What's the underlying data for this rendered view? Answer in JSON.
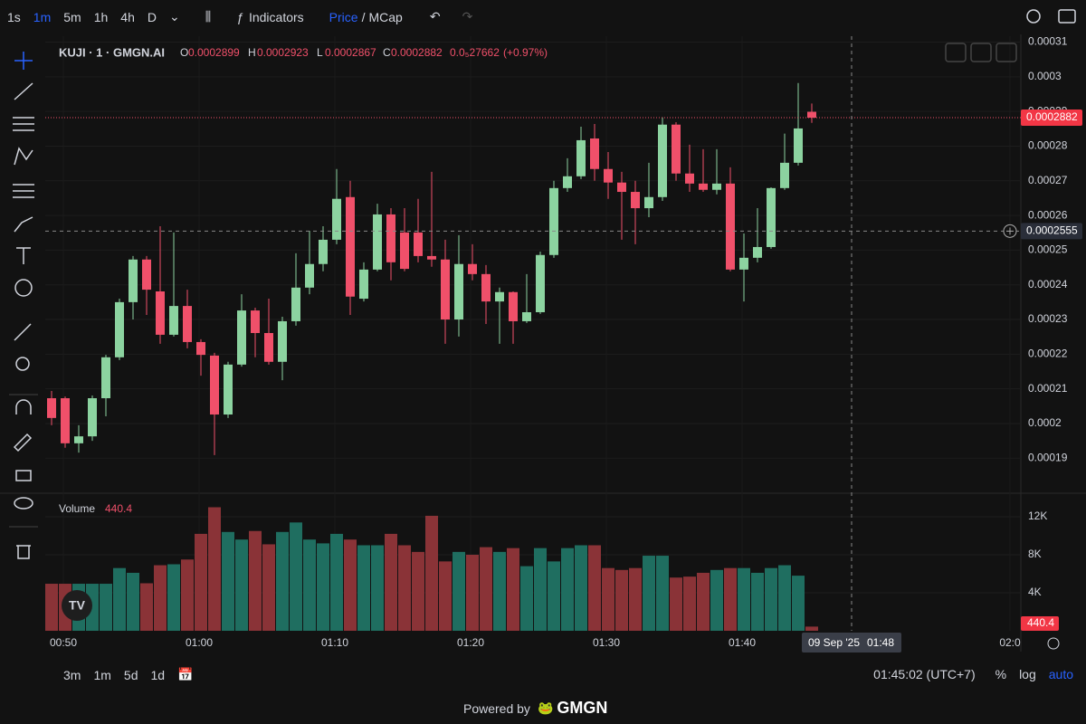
{
  "toolbar": {
    "intervals": [
      "1s",
      "1m",
      "5m",
      "1h",
      "4h",
      "D"
    ],
    "indicators": "Indicators",
    "price": "Price",
    "separator": "/",
    "mcap": "MCap"
  },
  "legend": {
    "symbol": "KUJI · 1 · GMGN.AI",
    "o_label": "O",
    "h_label": "H",
    "l_label": "L",
    "c_label": "C",
    "change": "0.0₅27662",
    "change_pct": "(+0.97%)"
  },
  "chart": {
    "type": "candlestick",
    "up_color": "#8cd3a0",
    "down_color": "#f0506a",
    "ylim": [
      0.0001799,
      0.0003117
    ],
    "yticks": [
      0.00031,
      0.0003,
      0.00029,
      0.00028,
      0.00027,
      0.00026,
      0.00025,
      0.00024,
      0.00023,
      0.00022,
      0.00021,
      0.0002,
      0.00019
    ],
    "candles": {
      "open": [
        0.0002073,
        0.0002073,
        0.0001943,
        0.0001963,
        0.0002073,
        0.0002191,
        0.000235,
        0.0002473,
        0.0002381,
        0.0002256,
        0.0002339,
        0.0002235,
        0.0002196,
        0.0002026,
        0.000217,
        0.0002326,
        0.0002261,
        0.0002178,
        0.0002295,
        0.0002392,
        0.000246,
        0.000253,
        0.0002653,
        0.000236,
        0.0002444,
        0.0002603,
        0.0002551,
        0.0002551,
        0.0002483,
        0.0002473,
        0.00023,
        0.000246,
        0.0002431,
        0.0002352,
        0.0002379,
        0.0002295,
        0.0002321,
        0.0002486,
        0.0002679,
        0.0002713,
        0.0002822,
        0.0002734,
        0.0002695,
        0.0002668,
        0.0002621,
        0.0002653,
        0.0002862,
        0.0002721,
        0.0002692,
        0.0002674,
        0.0002692,
        0.0002444,
        0.0002478,
        0.0002509,
        0.0002679,
        0.0002752,
        0.0002899
      ],
      "high": [
        0.0002094,
        0.0002078,
        0.0001995,
        0.0002081,
        0.0002198,
        0.000236,
        0.0002483,
        0.0002483,
        0.0002569,
        0.0002551,
        0.0002386,
        0.0002243,
        0.0002204,
        0.0002178,
        0.0002373,
        0.0002334,
        0.000236,
        0.0002308,
        0.0002491,
        0.0002556,
        0.0002569,
        0.0002734,
        0.00027,
        0.0002465,
        0.0002634,
        0.0002621,
        0.0002621,
        0.0002648,
        0.0002726,
        0.000253,
        0.0002543,
        0.0002517,
        0.0002457,
        0.0002392,
        0.0002381,
        0.0002431,
        0.0002496,
        0.00027,
        0.0002765,
        0.0002856,
        0.0002864,
        0.0002783,
        0.0002726,
        0.00027,
        0.0002752,
        0.0002883,
        0.0002869,
        0.0002804,
        0.0002791,
        0.0002791,
        0.0002739,
        0.0002548,
        0.0002621,
        0.0002681,
        0.0002836,
        0.0002982,
        0.0002923
      ],
      "low": [
        0.0001995,
        0.000193,
        0.0001916,
        0.000195,
        0.0002021,
        0.0002183,
        0.00023,
        0.0002313,
        0.000223,
        0.0002251,
        0.0002217,
        0.0002138,
        0.0001909,
        0.0002016,
        0.0002164,
        0.0002191,
        0.000217,
        0.0002125,
        0.0002282,
        0.0002373,
        0.0002439,
        0.0002517,
        0.0002313,
        0.0002352,
        0.0002439,
        0.0002413,
        0.0002439,
        0.0002465,
        0.0002452,
        0.000223,
        0.0002251,
        0.0002413,
        0.0002287,
        0.000223,
        0.000223,
        0.000229,
        0.0002316,
        0.0002478,
        0.0002668,
        0.0002705,
        0.00027,
        0.0002648,
        0.000253,
        0.0002517,
        0.0002595,
        0.0002642,
        0.00027,
        0.0002668,
        0.0002668,
        0.0002661,
        0.0002439,
        0.0002352,
        0.0002465,
        0.0002504,
        0.0002674,
        0.0002744,
        0.0002867
      ],
      "close": [
        0.0002016,
        0.0001943,
        0.0001963,
        0.0002073,
        0.0002191,
        0.000235,
        0.0002473,
        0.0002386,
        0.0002256,
        0.0002339,
        0.0002235,
        0.0002198,
        0.0002026,
        0.000217,
        0.0002326,
        0.0002261,
        0.0002178,
        0.0002295,
        0.0002392,
        0.000246,
        0.000253,
        0.0002648,
        0.0002366,
        0.0002444,
        0.0002603,
        0.0002465,
        0.0002446,
        0.0002483,
        0.0002473,
        0.00023,
        0.000246,
        0.0002431,
        0.0002352,
        0.0002379,
        0.0002295,
        0.0002321,
        0.0002486,
        0.0002679,
        0.0002713,
        0.0002817,
        0.0002734,
        0.0002695,
        0.0002668,
        0.0002621,
        0.0002653,
        0.0002862,
        0.0002721,
        0.0002692,
        0.0002674,
        0.0002692,
        0.0002444,
        0.0002478,
        0.0002509,
        0.0002679,
        0.0002752,
        0.0002851,
        0.0002882
      ]
    },
    "crosshair_price": 0.0002555,
    "crosshair_date": "09 Sep '25",
    "crosshair_time": "01:48",
    "xlabels": [
      "00:50",
      "01:00",
      "01:10",
      "01:20",
      "01:30",
      "01:40",
      "02:0"
    ],
    "volume": {
      "title": "Volume",
      "up_color": "#1f6e60",
      "down_color": "#8a3337",
      "ylim": [
        0,
        14000
      ],
      "yticks": [
        {
          "value": 12000,
          "label": "12K"
        },
        {
          "value": 8000,
          "label": "8K"
        },
        {
          "value": 4000,
          "label": "4K"
        }
      ],
      "values": [
        4950,
        4950,
        4950,
        4950,
        4950,
        6600,
        6100,
        5000,
        6900,
        7000,
        7500,
        10200,
        13000,
        10400,
        9600,
        10500,
        9100,
        10400,
        11400,
        9600,
        9200,
        10200,
        9600,
        9000,
        9000,
        10200,
        9000,
        8300,
        12100,
        7300,
        8300,
        8000,
        8800,
        8300,
        8700,
        6800,
        8700,
        7300,
        8700,
        9000,
        9000,
        6600,
        6400,
        6600,
        7900,
        7900,
        5600,
        5700,
        6100,
        6400,
        6600,
        6600,
        6100,
        6600,
        6900,
        5800,
        440.4
      ]
    }
  },
  "bottom": {
    "ranges": [
      "3m",
      "1m",
      "5d",
      "1d"
    ],
    "clock": "01:45:02 (UTC+7)",
    "percent": "%",
    "log": "log",
    "auto": "auto"
  },
  "footer": {
    "powered": "Powered by",
    "brand": "GMGN"
  }
}
